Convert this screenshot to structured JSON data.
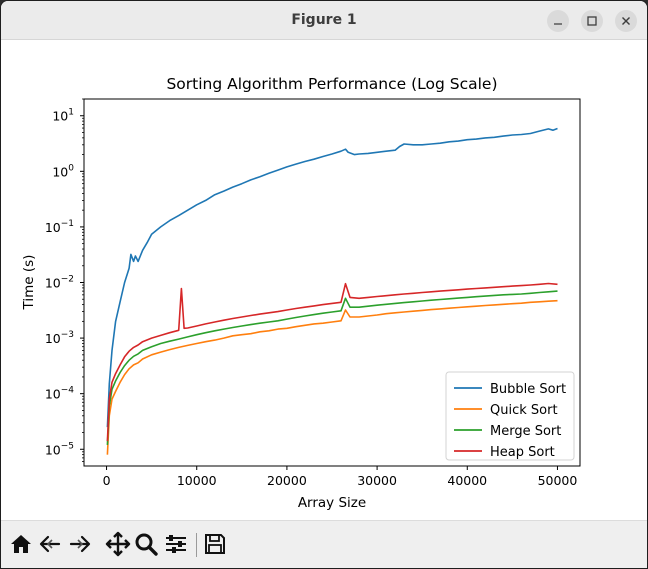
{
  "window": {
    "title": "Figure 1"
  },
  "toolbar": {
    "buttons": [
      "home-icon",
      "back-icon",
      "forward-icon",
      "pan-icon",
      "zoom-icon",
      "configure-icon",
      "save-icon"
    ]
  },
  "chart_data": {
    "type": "line",
    "title": "Sorting Algorithm Performance (Log Scale)",
    "xlabel": "Array Size",
    "ylabel": "Time (s)",
    "yscale": "log",
    "xlim": [
      -2500,
      52500
    ],
    "ylim": [
      5e-06,
      20
    ],
    "xticks": [
      0,
      10000,
      20000,
      30000,
      40000,
      50000
    ],
    "xtick_labels": [
      "0",
      "10000",
      "20000",
      "30000",
      "40000",
      "50000"
    ],
    "yticks": [
      1e-05,
      0.0001,
      0.001,
      0.01,
      0.1,
      1,
      10
    ],
    "ytick_labels": [
      {
        "base": "10",
        "exp": "−5"
      },
      {
        "base": "10",
        "exp": "−4"
      },
      {
        "base": "10",
        "exp": "−3"
      },
      {
        "base": "10",
        "exp": "−2"
      },
      {
        "base": "10",
        "exp": "−1"
      },
      {
        "base": "10",
        "exp": "0"
      },
      {
        "base": "10",
        "exp": "1"
      }
    ],
    "grid": false,
    "legend_position": "lower-right",
    "series": [
      {
        "name": "Bubble Sort",
        "color": "#1f77b4",
        "points": [
          [
            100,
            2.5e-05
          ],
          [
            300,
            0.00015
          ],
          [
            600,
            0.0006
          ],
          [
            1000,
            0.002
          ],
          [
            1500,
            0.0045
          ],
          [
            2000,
            0.01
          ],
          [
            2500,
            0.018
          ],
          [
            2700,
            0.032
          ],
          [
            3000,
            0.024
          ],
          [
            3200,
            0.03
          ],
          [
            3500,
            0.024
          ],
          [
            4000,
            0.038
          ],
          [
            4500,
            0.052
          ],
          [
            5000,
            0.074
          ],
          [
            6000,
            0.1
          ],
          [
            7000,
            0.13
          ],
          [
            8000,
            0.16
          ],
          [
            9000,
            0.2
          ],
          [
            10000,
            0.25
          ],
          [
            11000,
            0.3
          ],
          [
            12000,
            0.38
          ],
          [
            13000,
            0.44
          ],
          [
            14000,
            0.52
          ],
          [
            15000,
            0.6
          ],
          [
            16000,
            0.7
          ],
          [
            17000,
            0.8
          ],
          [
            18000,
            0.92
          ],
          [
            19000,
            1.05
          ],
          [
            20000,
            1.2
          ],
          [
            21000,
            1.35
          ],
          [
            22000,
            1.5
          ],
          [
            23000,
            1.65
          ],
          [
            24000,
            1.85
          ],
          [
            25000,
            2.05
          ],
          [
            26000,
            2.3
          ],
          [
            26500,
            2.5
          ],
          [
            26800,
            2.2
          ],
          [
            27500,
            2.0
          ],
          [
            28000,
            2.05
          ],
          [
            29000,
            2.1
          ],
          [
            30000,
            2.2
          ],
          [
            31000,
            2.3
          ],
          [
            32000,
            2.4
          ],
          [
            32500,
            2.8
          ],
          [
            33000,
            3.1
          ],
          [
            34000,
            3.0
          ],
          [
            35000,
            3.0
          ],
          [
            36000,
            3.1
          ],
          [
            37000,
            3.2
          ],
          [
            38000,
            3.4
          ],
          [
            39000,
            3.5
          ],
          [
            40000,
            3.7
          ],
          [
            41000,
            3.8
          ],
          [
            42000,
            4.0
          ],
          [
            43000,
            4.1
          ],
          [
            44000,
            4.3
          ],
          [
            45000,
            4.5
          ],
          [
            46000,
            4.6
          ],
          [
            47000,
            4.8
          ],
          [
            48000,
            5.3
          ],
          [
            49000,
            5.8
          ],
          [
            49500,
            5.5
          ],
          [
            50000,
            5.9
          ]
        ]
      },
      {
        "name": "Quick Sort",
        "color": "#ff7f0e",
        "points": [
          [
            100,
            8e-06
          ],
          [
            300,
            4e-05
          ],
          [
            600,
            8e-05
          ],
          [
            1000,
            0.00011
          ],
          [
            1500,
            0.00016
          ],
          [
            2000,
            0.00022
          ],
          [
            2500,
            0.00028
          ],
          [
            3000,
            0.00033
          ],
          [
            3500,
            0.00036
          ],
          [
            4000,
            0.00042
          ],
          [
            5000,
            0.0005
          ],
          [
            6000,
            0.00056
          ],
          [
            7000,
            0.00062
          ],
          [
            8000,
            0.00068
          ],
          [
            9000,
            0.00074
          ],
          [
            10000,
            0.0008
          ],
          [
            11000,
            0.00086
          ],
          [
            12000,
            0.00092
          ],
          [
            13000,
            0.001
          ],
          [
            14000,
            0.0011
          ],
          [
            15000,
            0.00115
          ],
          [
            16000,
            0.0012
          ],
          [
            17000,
            0.0013
          ],
          [
            18000,
            0.00135
          ],
          [
            19000,
            0.00145
          ],
          [
            20000,
            0.0015
          ],
          [
            21000,
            0.0016
          ],
          [
            22000,
            0.0017
          ],
          [
            23000,
            0.0018
          ],
          [
            24000,
            0.00185
          ],
          [
            25000,
            0.00195
          ],
          [
            26000,
            0.00205
          ],
          [
            26500,
            0.0032
          ],
          [
            27000,
            0.0024
          ],
          [
            28000,
            0.0024
          ],
          [
            29000,
            0.0025
          ],
          [
            30000,
            0.0026
          ],
          [
            31000,
            0.00275
          ],
          [
            32000,
            0.00285
          ],
          [
            33000,
            0.00295
          ],
          [
            34000,
            0.00305
          ],
          [
            35000,
            0.00315
          ],
          [
            36000,
            0.00325
          ],
          [
            37000,
            0.00335
          ],
          [
            38000,
            0.00345
          ],
          [
            39000,
            0.00355
          ],
          [
            40000,
            0.00365
          ],
          [
            41000,
            0.00375
          ],
          [
            42000,
            0.00385
          ],
          [
            43000,
            0.00395
          ],
          [
            44000,
            0.00405
          ],
          [
            45000,
            0.00415
          ],
          [
            46000,
            0.00425
          ],
          [
            47000,
            0.0044
          ],
          [
            48000,
            0.0045
          ],
          [
            49000,
            0.0046
          ],
          [
            50000,
            0.0047
          ]
        ]
      },
      {
        "name": "Merge Sort",
        "color": "#2ca02c",
        "points": [
          [
            100,
            1.2e-05
          ],
          [
            300,
            6e-05
          ],
          [
            600,
            0.00012
          ],
          [
            1000,
            0.00017
          ],
          [
            1500,
            0.00024
          ],
          [
            2000,
            0.00032
          ],
          [
            2500,
            0.0004
          ],
          [
            3000,
            0.00047
          ],
          [
            3500,
            0.00052
          ],
          [
            4000,
            0.0006
          ],
          [
            5000,
            0.0007
          ],
          [
            6000,
            0.0008
          ],
          [
            7000,
            0.00088
          ],
          [
            8000,
            0.00096
          ],
          [
            9000,
            0.00105
          ],
          [
            10000,
            0.00115
          ],
          [
            11000,
            0.00125
          ],
          [
            12000,
            0.00135
          ],
          [
            13000,
            0.00145
          ],
          [
            14000,
            0.00155
          ],
          [
            15000,
            0.00165
          ],
          [
            16000,
            0.00175
          ],
          [
            17000,
            0.00185
          ],
          [
            18000,
            0.00195
          ],
          [
            19000,
            0.00205
          ],
          [
            20000,
            0.0022
          ],
          [
            21000,
            0.00235
          ],
          [
            22000,
            0.0025
          ],
          [
            23000,
            0.00265
          ],
          [
            24000,
            0.0028
          ],
          [
            25000,
            0.00295
          ],
          [
            26000,
            0.0031
          ],
          [
            26500,
            0.0052
          ],
          [
            27000,
            0.0036
          ],
          [
            28000,
            0.0036
          ],
          [
            29000,
            0.00375
          ],
          [
            30000,
            0.0039
          ],
          [
            31000,
            0.00405
          ],
          [
            32000,
            0.0042
          ],
          [
            33000,
            0.00435
          ],
          [
            34000,
            0.0045
          ],
          [
            35000,
            0.00465
          ],
          [
            36000,
            0.0048
          ],
          [
            37000,
            0.00495
          ],
          [
            38000,
            0.0051
          ],
          [
            39000,
            0.00525
          ],
          [
            40000,
            0.0054
          ],
          [
            41000,
            0.00555
          ],
          [
            42000,
            0.0057
          ],
          [
            43000,
            0.00585
          ],
          [
            44000,
            0.006
          ],
          [
            45000,
            0.0061
          ],
          [
            46000,
            0.0062
          ],
          [
            47000,
            0.0064
          ],
          [
            48000,
            0.0066
          ],
          [
            49000,
            0.0068
          ],
          [
            50000,
            0.007
          ]
        ]
      },
      {
        "name": "Heap Sort",
        "color": "#d62728",
        "points": [
          [
            100,
            1.4e-05
          ],
          [
            300,
            8e-05
          ],
          [
            600,
            0.00016
          ],
          [
            1000,
            0.00023
          ],
          [
            1500,
            0.00033
          ],
          [
            2000,
            0.00046
          ],
          [
            2500,
            0.00058
          ],
          [
            3000,
            0.00068
          ],
          [
            3500,
            0.00075
          ],
          [
            4000,
            0.00086
          ],
          [
            5000,
            0.001
          ],
          [
            6000,
            0.00112
          ],
          [
            7000,
            0.00125
          ],
          [
            8000,
            0.00138
          ],
          [
            8300,
            0.0078
          ],
          [
            8600,
            0.0015
          ],
          [
            9000,
            0.00152
          ],
          [
            10000,
            0.00165
          ],
          [
            11000,
            0.0018
          ],
          [
            12000,
            0.00195
          ],
          [
            13000,
            0.0021
          ],
          [
            14000,
            0.00225
          ],
          [
            15000,
            0.0024
          ],
          [
            16000,
            0.00255
          ],
          [
            17000,
            0.0027
          ],
          [
            18000,
            0.00285
          ],
          [
            19000,
            0.003
          ],
          [
            20000,
            0.0032
          ],
          [
            21000,
            0.0034
          ],
          [
            22000,
            0.0036
          ],
          [
            23000,
            0.0038
          ],
          [
            24000,
            0.004
          ],
          [
            25000,
            0.0042
          ],
          [
            26000,
            0.0044
          ],
          [
            26500,
            0.0095
          ],
          [
            27000,
            0.0054
          ],
          [
            28000,
            0.0052
          ],
          [
            29000,
            0.0054
          ],
          [
            30000,
            0.0056
          ],
          [
            31000,
            0.0058
          ],
          [
            32000,
            0.006
          ],
          [
            33000,
            0.0062
          ],
          [
            34000,
            0.0064
          ],
          [
            35000,
            0.0066
          ],
          [
            36000,
            0.0068
          ],
          [
            37000,
            0.007
          ],
          [
            38000,
            0.0072
          ],
          [
            39000,
            0.0074
          ],
          [
            40000,
            0.0076
          ],
          [
            41000,
            0.0078
          ],
          [
            42000,
            0.008
          ],
          [
            43000,
            0.0082
          ],
          [
            44000,
            0.0084
          ],
          [
            45000,
            0.0086
          ],
          [
            46000,
            0.0088
          ],
          [
            47000,
            0.009
          ],
          [
            48000,
            0.0093
          ],
          [
            49000,
            0.0096
          ],
          [
            50000,
            0.0093
          ]
        ]
      }
    ]
  }
}
